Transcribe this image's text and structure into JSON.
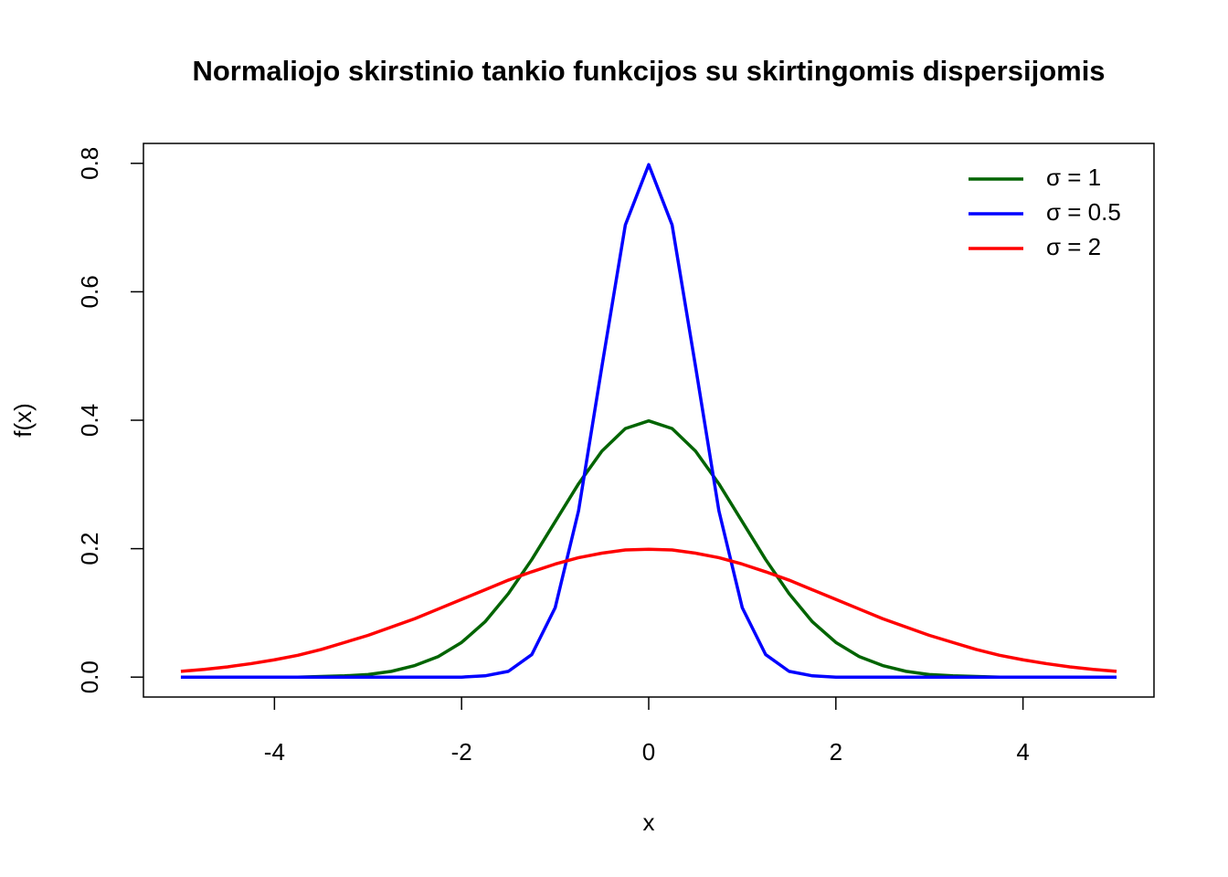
{
  "chart_data": {
    "type": "line",
    "title": "Normaliojo skirstinio tankio funkcijos su skirtingomis dispersijomis",
    "x_label": "x",
    "y_label": "f(x)",
    "x": [
      -5,
      -4.75,
      -4.5,
      -4.25,
      -4,
      -3.75,
      -3.5,
      -3.25,
      -3,
      -2.75,
      -2.5,
      -2.25,
      -2,
      -1.75,
      -1.5,
      -1.25,
      -1,
      -0.75,
      -0.5,
      -0.25,
      0,
      0.25,
      0.5,
      0.75,
      1,
      1.25,
      1.5,
      1.75,
      2,
      2.25,
      2.5,
      2.75,
      3,
      3.25,
      3.5,
      3.75,
      4,
      4.25,
      4.5,
      4.75,
      5
    ],
    "series": [
      {
        "name": "σ = 1",
        "color": "#006400",
        "values": [
          0,
          0,
          0,
          0,
          0,
          0,
          0.001,
          0.002,
          0.004,
          0.009,
          0.018,
          0.032,
          0.054,
          0.086,
          0.13,
          0.183,
          0.242,
          0.301,
          0.352,
          0.387,
          0.399,
          0.387,
          0.352,
          0.301,
          0.242,
          0.183,
          0.13,
          0.086,
          0.054,
          0.032,
          0.018,
          0.009,
          0.004,
          0.002,
          0.001,
          0,
          0,
          0,
          0,
          0,
          0
        ]
      },
      {
        "name": "σ = 0.5",
        "color": "#0000ff",
        "values": [
          0,
          0,
          0,
          0,
          0,
          0,
          0,
          0,
          0,
          0,
          0,
          0,
          0,
          0.002,
          0.009,
          0.035,
          0.108,
          0.259,
          0.484,
          0.704,
          0.798,
          0.704,
          0.484,
          0.259,
          0.108,
          0.035,
          0.009,
          0.002,
          0,
          0,
          0,
          0,
          0,
          0,
          0,
          0,
          0,
          0,
          0,
          0,
          0
        ]
      },
      {
        "name": "σ = 2",
        "color": "#ff0000",
        "values": [
          0.009,
          0.012,
          0.016,
          0.021,
          0.027,
          0.034,
          0.043,
          0.054,
          0.065,
          0.078,
          0.091,
          0.106,
          0.121,
          0.136,
          0.151,
          0.164,
          0.176,
          0.186,
          0.193,
          0.198,
          0.199,
          0.198,
          0.193,
          0.186,
          0.176,
          0.164,
          0.151,
          0.136,
          0.121,
          0.106,
          0.091,
          0.078,
          0.065,
          0.054,
          0.043,
          0.034,
          0.027,
          0.021,
          0.016,
          0.012,
          0.009
        ]
      }
    ],
    "xlim": [
      -5.4,
      5.4
    ],
    "ylim": [
      -0.031,
      0.831
    ],
    "xticks": [
      -4,
      -2,
      0,
      2,
      4
    ],
    "yticks": [
      0.0,
      0.2,
      0.4,
      0.6,
      0.8
    ],
    "legend_position": "topright"
  }
}
